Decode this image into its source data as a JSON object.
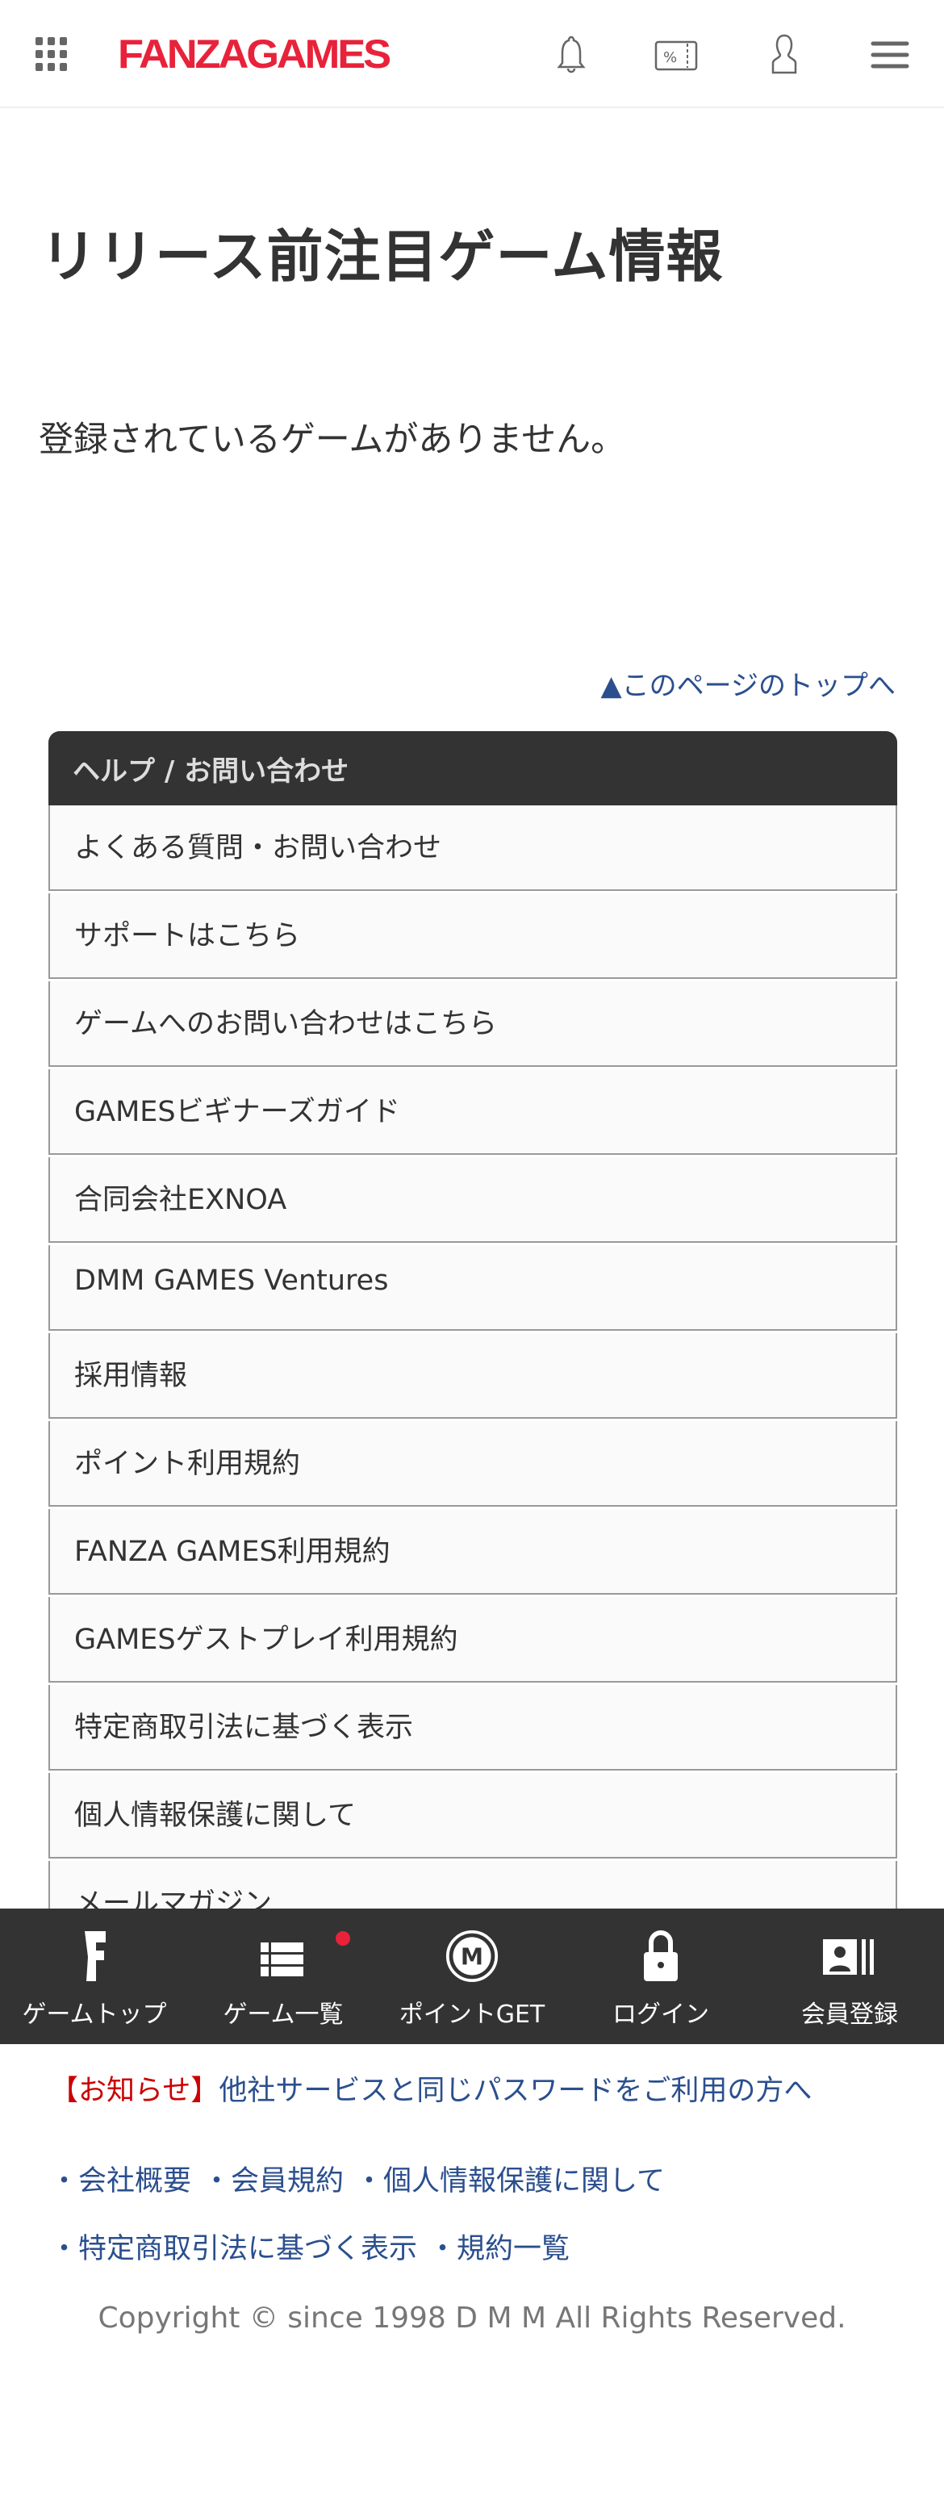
{
  "header": {
    "logo": "FANZAGAMES",
    "icons": [
      "grid-icon",
      "bell-icon",
      "coupon-icon",
      "user-icon",
      "menu-icon"
    ]
  },
  "page": {
    "title": "リリース前注目ゲーム情報",
    "empty_message": "登録されているゲームがありません。",
    "to_top": "▲このページのトップへ"
  },
  "help": {
    "heading": "ヘルプ / お問い合わせ",
    "items": [
      "よくある質問・お問い合わせ",
      "サポートはこちら",
      "ゲームへのお問い合わせはこちら",
      "GAMESビギナーズガイド",
      "合同会社EXNOA",
      "DMM GAMES Ventures",
      "採用情報",
      "ポイント利用規約",
      "FANZA GAMES利用規約",
      "GAMESゲストプレイ利用規約",
      "特定商取引法に基づく表示",
      "個人情報保護に関して",
      "メールマガジン"
    ]
  },
  "bottom_nav": [
    {
      "label": "ゲームトップ",
      "icon": "fanza-f-icon"
    },
    {
      "label": "ゲーム一覧",
      "icon": "list-icon",
      "badge": true
    },
    {
      "label": "ポイントGET",
      "icon": "m-point-icon"
    },
    {
      "label": "ログイン",
      "icon": "lock-icon"
    },
    {
      "label": "会員登録",
      "icon": "member-card-icon"
    }
  ],
  "footer": {
    "notice_tag": "【お知らせ】",
    "notice_text": "他社サービスと同じパスワードをご利用の方へ",
    "links_row1": [
      "・会社概要",
      "・会員規約",
      "・個人情報保護に関して"
    ],
    "links_row2": [
      "・特定商取引法に基づく表示",
      "・規約一覧"
    ],
    "copyright": "Copyright © since 1998 D M M All Rights Reserved."
  },
  "colors": {
    "brand": "#e8223a",
    "link": "#2b4f8e",
    "nav_bg": "#333333",
    "notice_red": "#cc0000"
  }
}
